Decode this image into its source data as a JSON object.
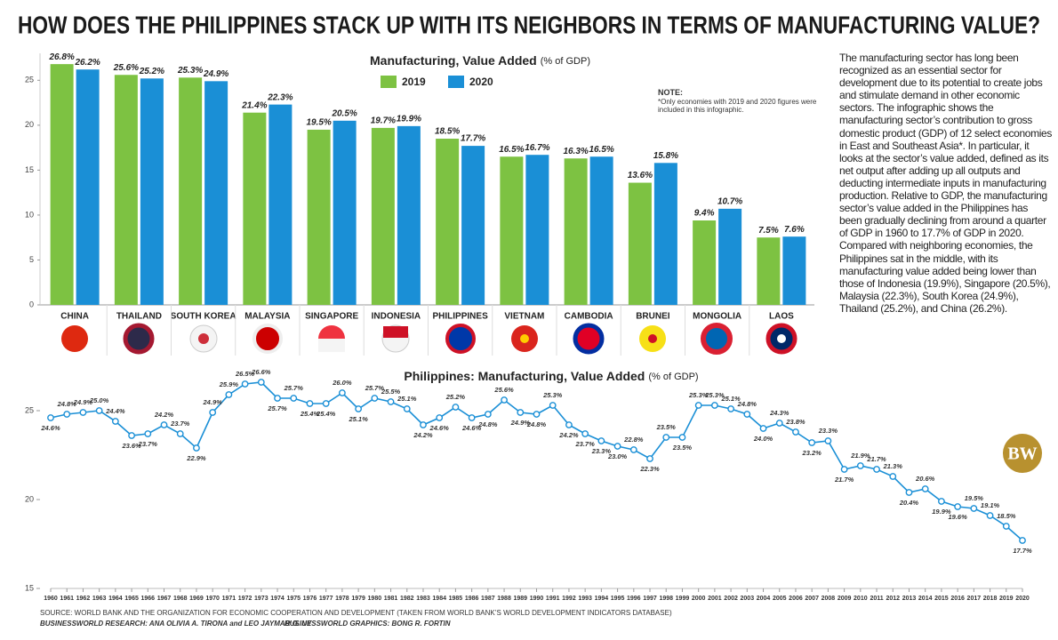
{
  "title": "HOW DOES THE PHILIPPINES STACK UP WITH ITS NEIGHBORS IN TERMS OF MANUFACTURING VALUE?",
  "chart_data": [
    {
      "type": "bar",
      "title": "Manufacturing, Value Added",
      "unit": "(% of GDP)",
      "categories": [
        "CHINA",
        "THAILAND",
        "SOUTH KOREA",
        "MALAYSIA",
        "SINGAPORE",
        "INDONESIA",
        "PHILIPPINES",
        "VIETNAM",
        "CAMBODIA",
        "BRUNEI",
        "MONGOLIA",
        "LAOS"
      ],
      "series": [
        {
          "name": "2019",
          "color": "#7dc242",
          "values": [
            26.8,
            25.6,
            25.3,
            21.4,
            19.5,
            19.7,
            18.5,
            16.5,
            16.3,
            13.6,
            9.4,
            7.5
          ],
          "value_labels": [
            "26.8%",
            "25.6%",
            "25.3%",
            "21.4%",
            "19.5%",
            "19.7%",
            "18.5%",
            "16.5%",
            "16.3%",
            "13.6%",
            "9.4%",
            "7.5%"
          ]
        },
        {
          "name": "2020",
          "color": "#1a8fd6",
          "values": [
            26.2,
            25.2,
            24.9,
            22.3,
            20.5,
            19.9,
            17.7,
            16.7,
            16.5,
            15.8,
            10.7,
            7.6
          ],
          "value_labels": [
            "26.2%",
            "25.2%",
            "24.9%",
            "22.3%",
            "20.5%",
            "19.9%",
            "17.7%",
            "16.7%",
            "16.5%",
            "15.8%",
            "10.7%",
            "7.6%"
          ]
        }
      ],
      "ylim": [
        0,
        28
      ],
      "yticks": [
        0,
        5,
        10,
        15,
        20,
        25
      ]
    },
    {
      "type": "line",
      "title": "Philippines: Manufacturing, Value Added",
      "unit": "(% of GDP)",
      "color": "#1a8fd6",
      "x": [
        1960,
        1961,
        1962,
        1963,
        1964,
        1965,
        1966,
        1967,
        1968,
        1969,
        1970,
        1971,
        1972,
        1973,
        1974,
        1975,
        1976,
        1977,
        1978,
        1979,
        1980,
        1981,
        1982,
        1983,
        1984,
        1985,
        1986,
        1987,
        1988,
        1989,
        1990,
        1991,
        1992,
        1993,
        1994,
        1995,
        1996,
        1997,
        1998,
        1999,
        2000,
        2001,
        2002,
        2003,
        2004,
        2005,
        2006,
        2007,
        2008,
        2009,
        2010,
        2011,
        2012,
        2013,
        2014,
        2015,
        2016,
        2017,
        2018,
        2019,
        2020
      ],
      "values": [
        24.6,
        24.8,
        24.9,
        25.0,
        24.4,
        23.6,
        23.7,
        24.2,
        23.7,
        22.9,
        24.9,
        25.9,
        26.5,
        26.6,
        25.7,
        25.7,
        25.4,
        25.4,
        26.0,
        25.1,
        25.7,
        25.5,
        25.1,
        24.2,
        24.6,
        25.2,
        24.6,
        24.8,
        25.6,
        24.9,
        24.8,
        25.3,
        24.2,
        23.7,
        23.3,
        23.0,
        22.8,
        22.3,
        23.5,
        23.5,
        25.3,
        25.3,
        25.1,
        24.8,
        24.0,
        24.3,
        23.8,
        23.2,
        23.3,
        21.7,
        21.9,
        21.7,
        21.3,
        20.4,
        20.6,
        19.9,
        19.6,
        19.5,
        19.1,
        18.5,
        17.7
      ],
      "value_labels": [
        "24.6%",
        "24.8%",
        "24.9%",
        "25.0%",
        "24.4%",
        "23.6%",
        "23.7%",
        "24.2%",
        "23.7%",
        "22.9%",
        "24.9%",
        "25.9%",
        "26.5%",
        "26.6%",
        "25.7%",
        "25.7%",
        "25.4%",
        "25.4%",
        "26.0%",
        "25.1%",
        "25.7%",
        "25.5%",
        "25.1%",
        "24.2%",
        "24.6%",
        "25.2%",
        "24.6%",
        "24.8%",
        "25.6%",
        "24.9%",
        "24.8%",
        "25.3%",
        "24.2%",
        "23.7%",
        "23.3%",
        "23.0%",
        "22.8%",
        "22.3%",
        "23.5%",
        "23.5%",
        "25.3%",
        "25.3%",
        "25.1%",
        "24.8%",
        "24.0%",
        "24.3%",
        "23.8%",
        "23.2%",
        "23.3%",
        "21.7%",
        "21.9%",
        "21.7%",
        "21.3%",
        "20.4%",
        "20.6%",
        "19.9%",
        "19.6%",
        "19.5%",
        "19.1%",
        "18.5%",
        "17.7%"
      ],
      "xlim": [
        1960,
        2020
      ],
      "ylim": [
        15,
        27.5
      ],
      "yticks": [
        15,
        20,
        25
      ]
    }
  ],
  "note": {
    "label": "NOTE:",
    "text": "*Only economies with 2019 and 2020 figures were included in this infographic."
  },
  "description": "The manufacturing sector has long been recognized as an essential sector for development due to its potential to create jobs and stimulate demand in other economic sectors. The infographic shows the manufacturing sector’s contribution to gross domestic product (GDP) of 12 select economies in East and Southeast Asia*. In particular, it looks at the sector’s value added, defined as its net output after adding up all outputs and deducting intermediate inputs in manufacturing production. Relative to GDP, the manufacturing sector’s value added in the Philippines has been gradually declining from around a quarter of GDP in 1960 to 17.7% of GDP in 2020. Compared with neighboring economies, the Philippines sat in the middle, with its manufacturing value added being lower than those of Indonesia (19.9%), Singapore (20.5%), Malaysia (22.3%), South Korea (24.9%), Thailand (25.2%), and China (26.2%).",
  "logo": "BW",
  "source": "SOURCE: WORLD BANK AND THE ORGANIZATION FOR ECONOMIC COOPERATION AND DEVELOPMENT (TAKEN FROM WORLD BANK’S WORLD DEVELOPMENT INDICATORS DATABASE)",
  "credits": [
    "BUSINESSWORLD RESEARCH: ANA OLIVIA A. TIRONA and LEO JAYMAR G. UY",
    "BUSINESSWORLD GRAPHICS: BONG R. FORTIN"
  ]
}
